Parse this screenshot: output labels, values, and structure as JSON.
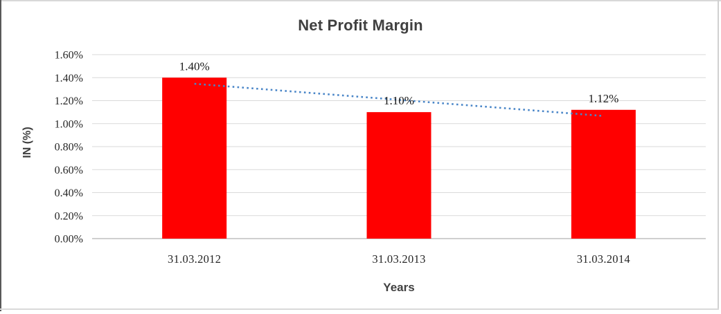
{
  "chart_data": {
    "type": "bar",
    "title": "Net Profit Margin",
    "xlabel": "Years",
    "ylabel": "IN (%)",
    "categories": [
      "31.03.2012",
      "31.03.2013",
      "31.03.2014"
    ],
    "values": [
      1.4,
      1.1,
      1.12
    ],
    "data_labels": [
      "1.40%",
      "1.10%",
      "1.12%"
    ],
    "y_ticks": [
      "1.60%",
      "1.40%",
      "1.20%",
      "1.00%",
      "0.80%",
      "0.60%",
      "0.40%",
      "0.20%",
      "0.00%"
    ],
    "y_min": 0,
    "y_max": 1.6,
    "y_step": 0.2,
    "ylim": [
      0,
      1.6
    ],
    "grid": true,
    "legend": "none",
    "bar_color": "#FF0000",
    "trendline": {
      "type": "linear",
      "style": "dotted",
      "color": "#4A86C8",
      "start_value": 1.3467,
      "end_value": 1.0667
    },
    "colors": {
      "gridline": "#D9D9D9",
      "axis_line": "#BFBFBF",
      "title": "#404040",
      "label": "#262626",
      "data_label": "#1A1A1A",
      "frame_dark": "#595959",
      "frame_light": "#D9D9D9"
    }
  }
}
